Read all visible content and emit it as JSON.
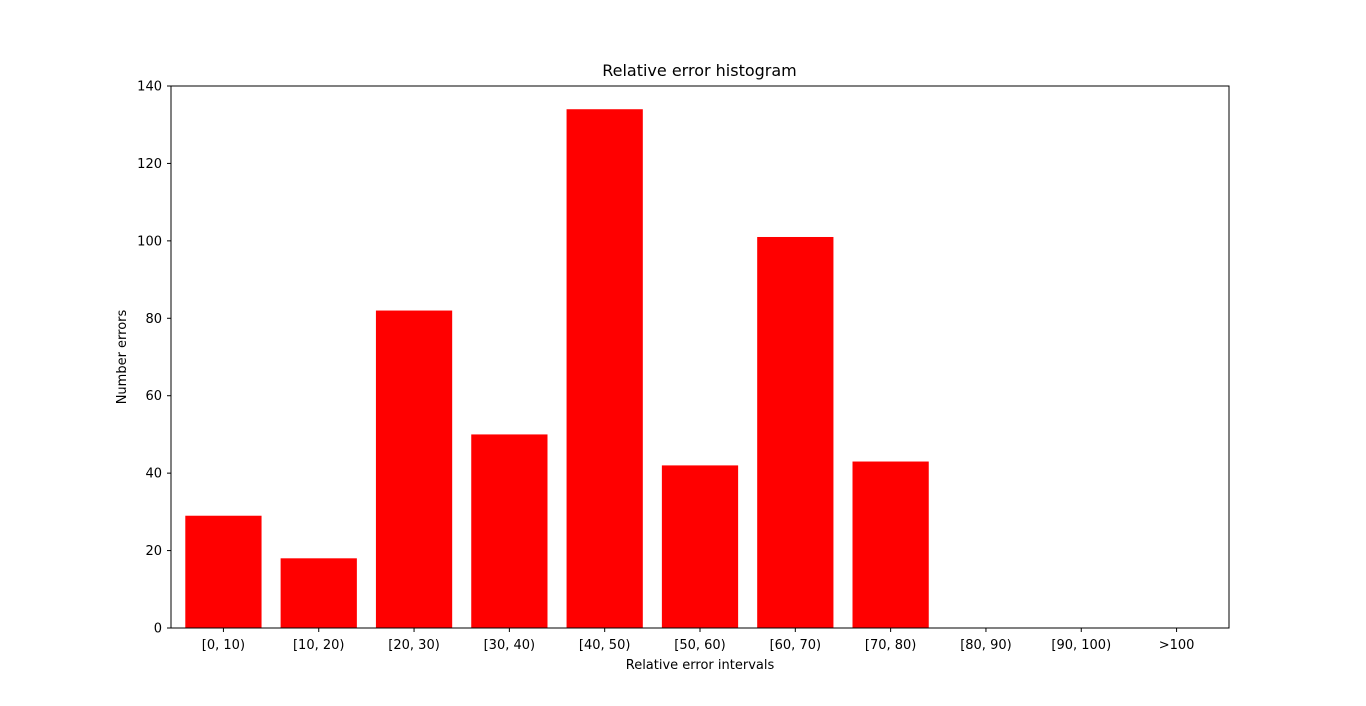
{
  "chart_data": {
    "type": "bar",
    "title": "Relative error histogram",
    "xlabel": "Relative error intervals",
    "ylabel": "Number errors",
    "categories": [
      "[0, 10)",
      "[10, 20)",
      "[20, 30)",
      "[30, 40)",
      "[40, 50)",
      "[50, 60)",
      "[60, 70)",
      "[70, 80)",
      "[80, 90)",
      "[90, 100)",
      ">100"
    ],
    "values": [
      29,
      18,
      82,
      50,
      134,
      42,
      101,
      43,
      0,
      0,
      0
    ],
    "ylim": [
      0,
      140
    ],
    "yticks": [
      0,
      20,
      40,
      60,
      80,
      100,
      120,
      140
    ],
    "bar_color": "#ff0000",
    "grid": false,
    "legend": false
  }
}
